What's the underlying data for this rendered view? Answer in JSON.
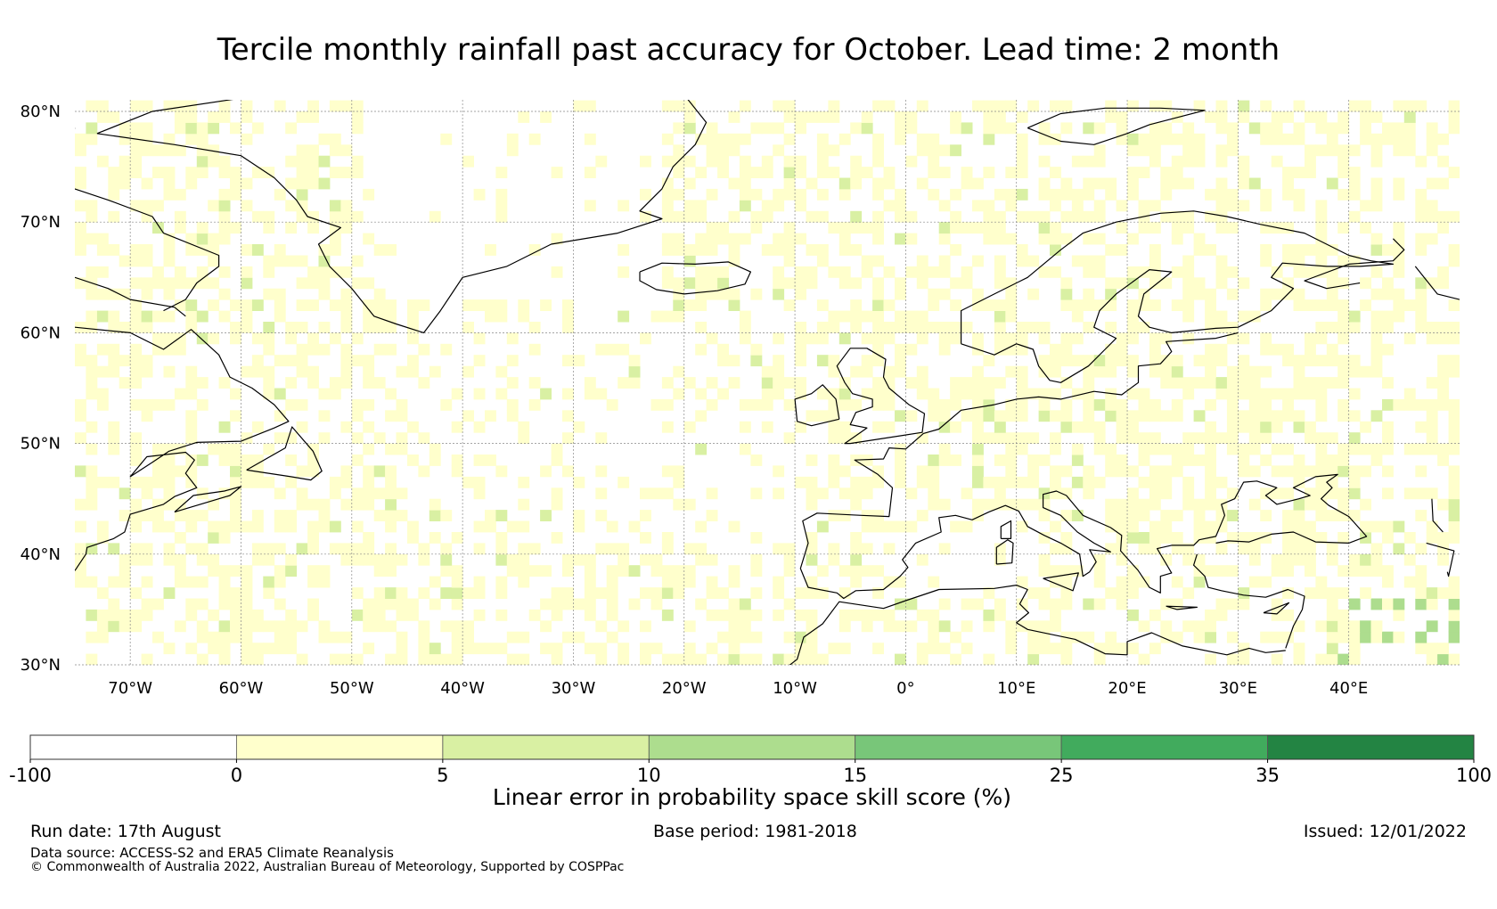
{
  "title": "Tercile monthly rainfall past accuracy for October. Lead time: 2 month",
  "map": {
    "region": "North Atlantic and Europe",
    "lon_range": [
      -75,
      50
    ],
    "lat_range": [
      30,
      81
    ],
    "lat_ticks": [
      "30°N",
      "40°N",
      "50°N",
      "60°N",
      "70°N",
      "80°N"
    ],
    "lat_values": [
      30,
      40,
      50,
      60,
      70,
      80
    ],
    "lon_ticks": [
      "70°W",
      "60°W",
      "50°W",
      "40°W",
      "30°W",
      "20°W",
      "10°W",
      "0°",
      "10°E",
      "20°E",
      "30°E",
      "40°E"
    ],
    "lon_values": [
      -70,
      -60,
      -50,
      -40,
      -30,
      -20,
      -10,
      0,
      10,
      20,
      30,
      40
    ],
    "grid": true,
    "coastline_color": "#000000"
  },
  "colorbar": {
    "label": "Linear error in probability space skill score (%)",
    "boundaries": [
      "-100",
      "0",
      "5",
      "10",
      "15",
      "25",
      "35",
      "100"
    ],
    "colors": [
      "#ffffff",
      "#ffffcc",
      "#d9f0a3",
      "#addd8e",
      "#78c679",
      "#41ab5d",
      "#238443"
    ]
  },
  "footer": {
    "run_date": "Run date: 17th August",
    "base_period": "Base period: 1981-2018",
    "issued": "Issued: 12/01/2022",
    "data_source": "Data source: ACCESS-S2 and ERA5 Climate Reanalysis",
    "copyright": "© Commonwealth of Australia 2022, Australian Bureau of Meteorology, Supported by COSPPac"
  }
}
